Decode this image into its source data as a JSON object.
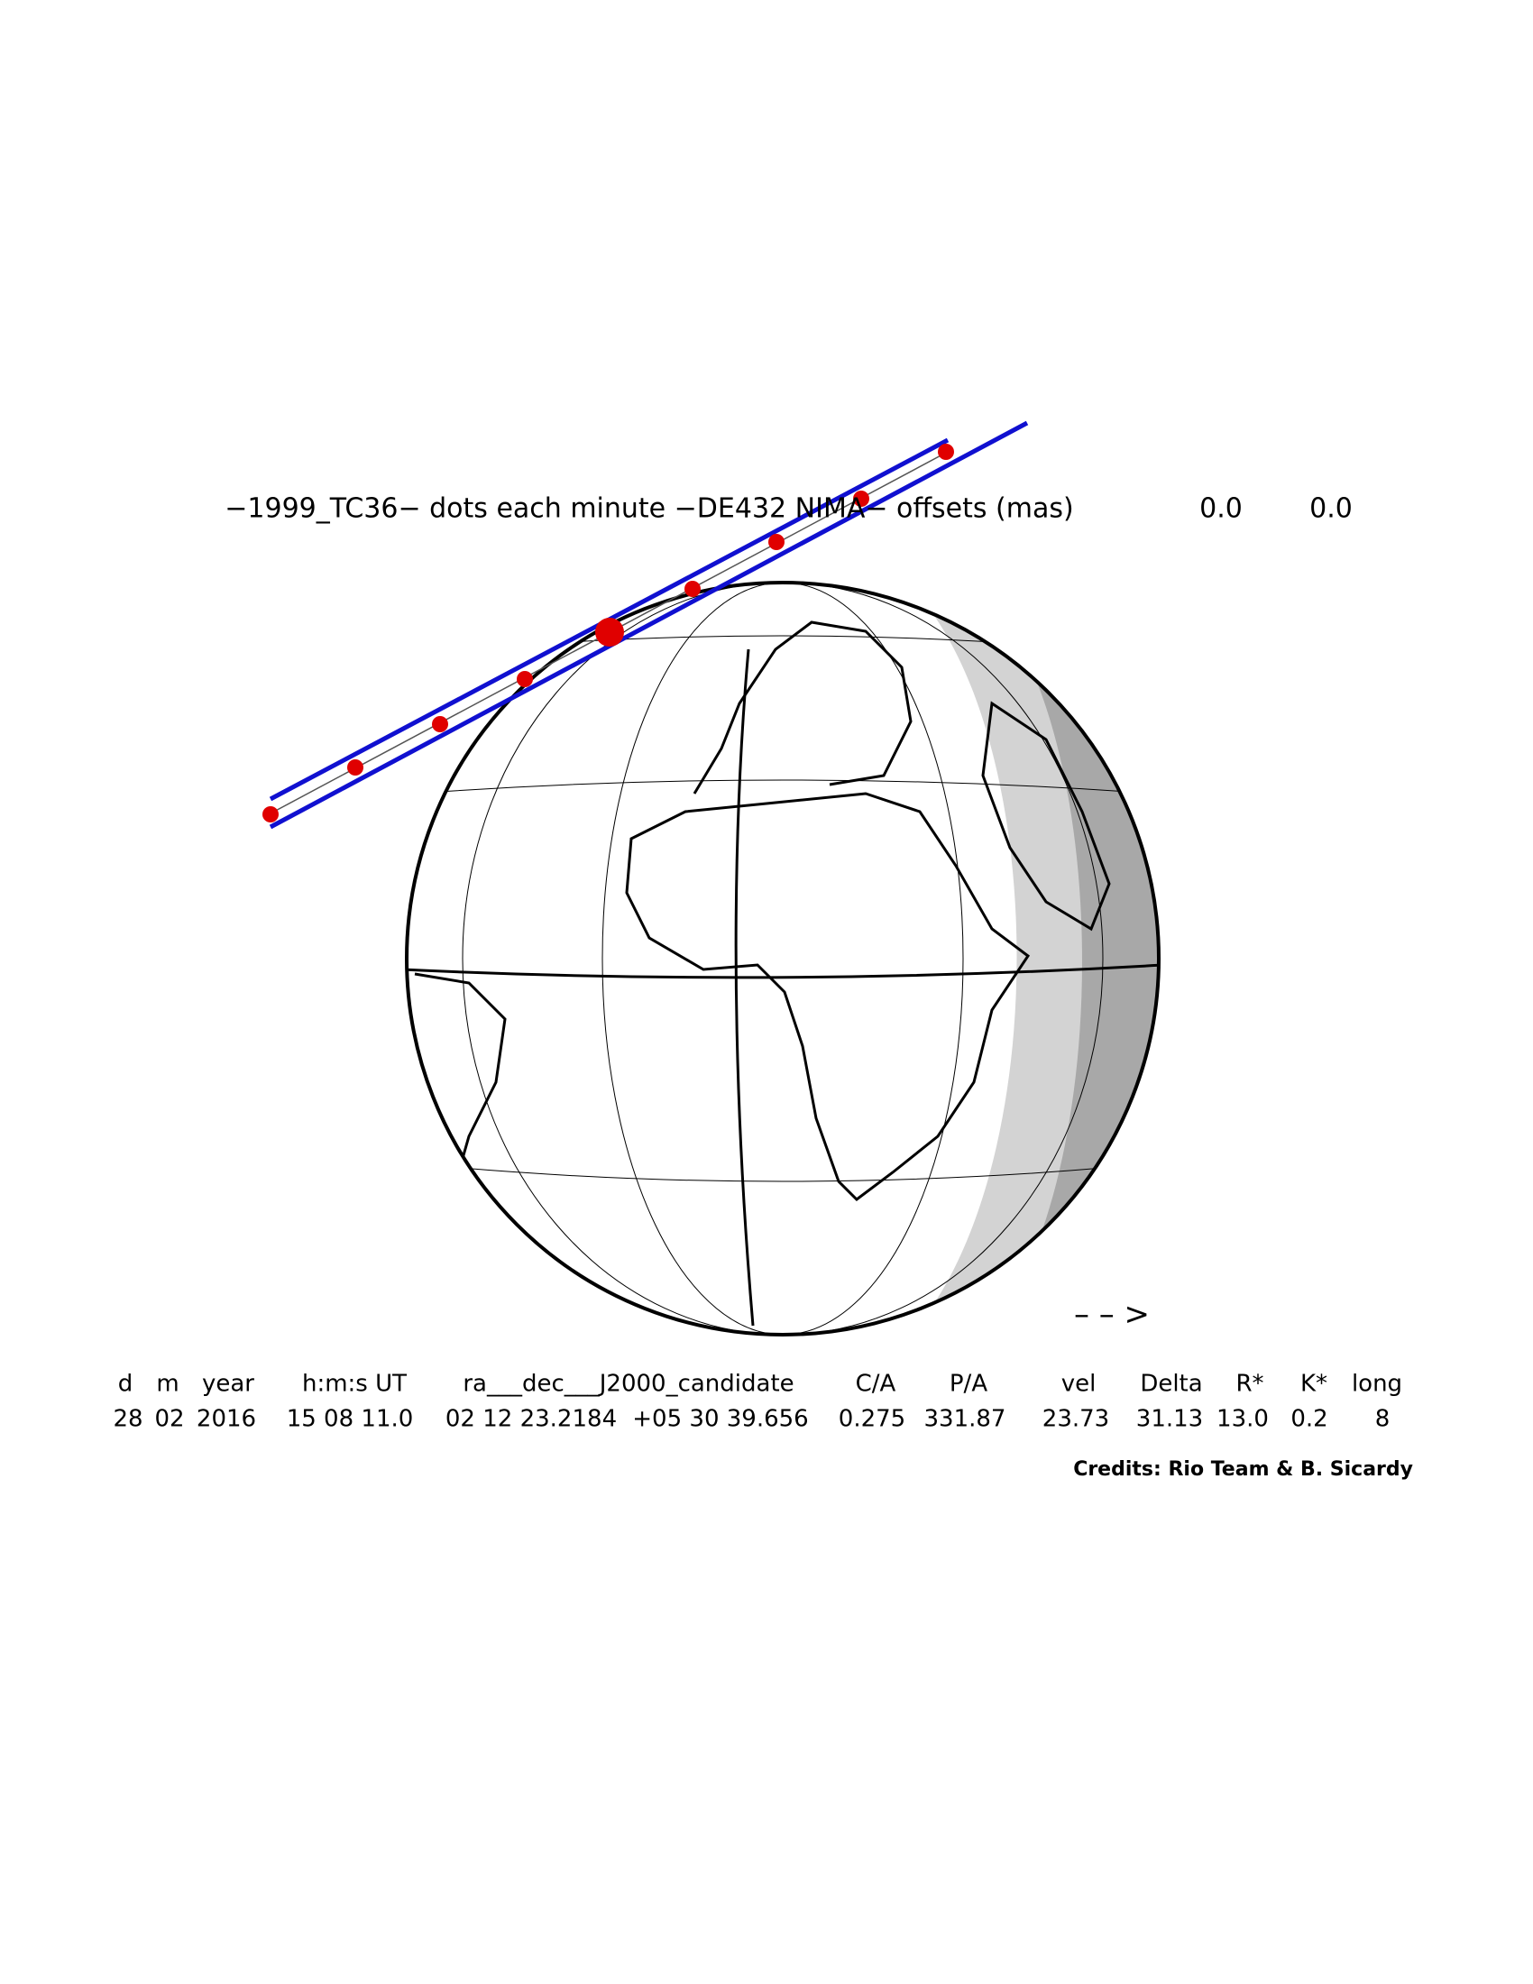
{
  "header": {
    "title": "−1999_TC36− dots each minute −DE432 NIMA− offsets (mas)",
    "offsets": [
      "0.0",
      "0.0"
    ]
  },
  "table": {
    "columns": [
      "d",
      "m",
      "year",
      "h:m:s UT",
      "ra___dec___J2000_candidate",
      "C/A",
      "P/A",
      "vel",
      "Delta",
      "R*",
      "K*",
      "long"
    ],
    "values": [
      "28",
      "02",
      "2016",
      "15 08 11.0",
      "02 12 23.2184",
      "+05 30 39.656",
      "0.275",
      "331.87",
      "23.73",
      "31.13",
      "13.0",
      "0.2",
      "8"
    ]
  },
  "direction_arrow": "– – >",
  "credits": "Credits: Rio Team & B. Sicardy"
}
